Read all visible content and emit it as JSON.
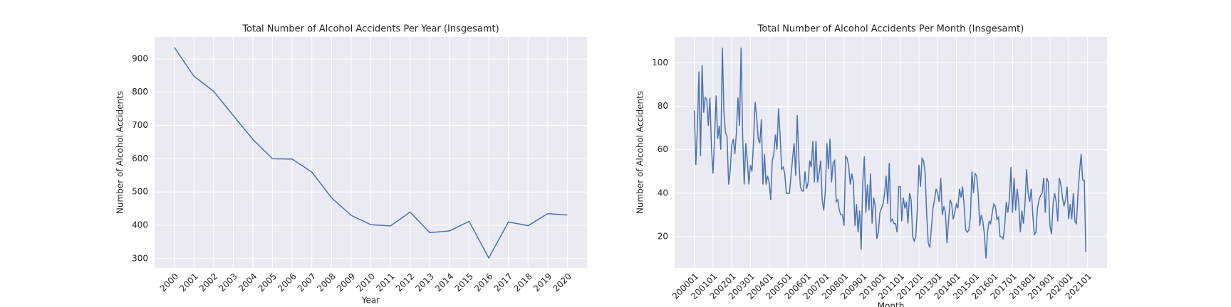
{
  "chart_data": [
    {
      "type": "line",
      "title": "Total Number of Alcohol Accidents Per Year (Insgesamt)",
      "x_label": "Year",
      "y_label": "Number of Alcohol Accidents",
      "x": [
        2000,
        2001,
        2002,
        2003,
        2004,
        2005,
        2006,
        2007,
        2008,
        2009,
        2010,
        2011,
        2012,
        2013,
        2014,
        2015,
        2016,
        2017,
        2018,
        2019,
        2020
      ],
      "series": [
        {
          "name": "Insgesamt",
          "color": "#4c72b0",
          "values": [
            935,
            848,
            803,
            730,
            658,
            600,
            599,
            560,
            483,
            430,
            402,
            398,
            440,
            378,
            383,
            412,
            302,
            410,
            399,
            435,
            431
          ]
        }
      ],
      "xlim": [
        1999,
        2021
      ],
      "xticks": [
        2000,
        2001,
        2002,
        2003,
        2004,
        2005,
        2006,
        2007,
        2008,
        2009,
        2010,
        2011,
        2012,
        2013,
        2014,
        2015,
        2016,
        2017,
        2018,
        2019,
        2020
      ],
      "ylim": [
        272,
        966
      ],
      "yticks": [
        300,
        400,
        500,
        600,
        700,
        800,
        900
      ],
      "grid": true,
      "background": "#eaeaf2"
    },
    {
      "type": "line",
      "title": "Total Number of Alcohol Accidents Per Month (Insgesamt)",
      "x_label": "Month",
      "y_label": "Number of Alcohol Accidents",
      "categories": [
        "200001",
        null,
        null,
        null,
        null,
        null,
        null,
        null,
        null,
        null,
        null,
        null,
        "200101",
        null,
        null,
        null,
        null,
        null,
        null,
        null,
        null,
        null,
        null,
        null,
        "200201",
        null,
        null,
        null,
        null,
        null,
        null,
        null,
        null,
        null,
        null,
        null,
        "200301",
        null,
        null,
        null,
        null,
        null,
        null,
        null,
        null,
        null,
        null,
        null,
        "200401",
        null,
        null,
        null,
        null,
        null,
        null,
        null,
        null,
        null,
        null,
        null,
        "200501",
        null,
        null,
        null,
        null,
        null,
        null,
        null,
        null,
        null,
        null,
        null,
        "200601",
        null,
        null,
        null,
        null,
        null,
        null,
        null,
        null,
        null,
        null,
        null,
        "200701",
        null,
        null,
        null,
        null,
        null,
        null,
        null,
        null,
        null,
        null,
        null,
        "200801",
        null,
        null,
        null,
        null,
        null,
        null,
        null,
        null,
        null,
        null,
        null,
        "200901",
        null,
        null,
        null,
        null,
        null,
        null,
        null,
        null,
        null,
        null,
        null,
        "201001",
        null,
        null,
        null,
        null,
        null,
        null,
        null,
        null,
        null,
        null,
        null,
        "201101",
        null,
        null,
        null,
        null,
        null,
        null,
        null,
        null,
        null,
        null,
        null,
        "201201",
        null,
        null,
        null,
        null,
        null,
        null,
        null,
        null,
        null,
        null,
        null,
        "201301",
        null,
        null,
        null,
        null,
        null,
        null,
        null,
        null,
        null,
        null,
        null,
        "201401",
        null,
        null,
        null,
        null,
        null,
        null,
        null,
        null,
        null,
        null,
        null,
        "201501",
        null,
        null,
        null,
        null,
        null,
        null,
        null,
        null,
        null,
        null,
        null,
        "201601",
        null,
        null,
        null,
        null,
        null,
        null,
        null,
        null,
        null,
        null,
        null,
        "201701",
        null,
        null,
        null,
        null,
        null,
        null,
        null,
        null,
        null,
        null,
        null,
        "201801",
        null,
        null,
        null,
        null,
        null,
        null,
        null,
        null,
        null,
        null,
        null,
        "201901",
        null,
        null,
        null,
        null,
        null,
        null,
        null,
        null,
        null,
        null,
        null,
        "202001",
        null,
        null,
        null,
        null,
        null,
        null,
        null,
        null,
        null,
        null,
        null,
        "202101"
      ],
      "series": [
        {
          "name": "Insgesamt",
          "color": "#4c72b0",
          "values": [
            78,
            53,
            70,
            96,
            57,
            99,
            77,
            84,
            83,
            71,
            84,
            61,
            49,
            65,
            85,
            65,
            71,
            60,
            107,
            77,
            68,
            66,
            44,
            50,
            62,
            65,
            58,
            68,
            84,
            71,
            107,
            67,
            44,
            63,
            55,
            44,
            53,
            50,
            64,
            82,
            75,
            65,
            63,
            74,
            44,
            58,
            44,
            48,
            45,
            37,
            55,
            58,
            67,
            60,
            79,
            67,
            51,
            52,
            49,
            40,
            40,
            40,
            48,
            56,
            63,
            48,
            76,
            56,
            43,
            41,
            41,
            50,
            42,
            45,
            55,
            52,
            64,
            45,
            64,
            45,
            49,
            55,
            37,
            32,
            41,
            63,
            51,
            65,
            45,
            54,
            55,
            36,
            37,
            32,
            30,
            30,
            25,
            57,
            56,
            52,
            44,
            49,
            45,
            25,
            35,
            22,
            32,
            14,
            45,
            57,
            31,
            44,
            32,
            49,
            26,
            38,
            34,
            19,
            22,
            31,
            33,
            35,
            40,
            48,
            35,
            54,
            27,
            28,
            26,
            26,
            22,
            43,
            43,
            27,
            38,
            33,
            36,
            26,
            40,
            37,
            20,
            18,
            20,
            33,
            53,
            43,
            56,
            55,
            49,
            30,
            17,
            15,
            24,
            33,
            37,
            42,
            40,
            36,
            47,
            30,
            34,
            31,
            17,
            27,
            37,
            35,
            28,
            31,
            35,
            33,
            42,
            38,
            43,
            34,
            23,
            22,
            23,
            29,
            50,
            40,
            49,
            48,
            40,
            25,
            30,
            27,
            21,
            10,
            22,
            27,
            26,
            31,
            35,
            34,
            28,
            29,
            20,
            20,
            19,
            25,
            36,
            31,
            37,
            52,
            31,
            47,
            32,
            42,
            35,
            22,
            32,
            26,
            35,
            51,
            40,
            36,
            42,
            30,
            21,
            22,
            33,
            37,
            39,
            40,
            47,
            31,
            47,
            45,
            25,
            21,
            35,
            40,
            36,
            27,
            47,
            44,
            38,
            34,
            37,
            43,
            28,
            35,
            28,
            40,
            27,
            26,
            40,
            50,
            58,
            46,
            46,
            13,
            null
          ]
        }
      ],
      "ylim": [
        5.6,
        111.9
      ],
      "yticks": [
        20,
        40,
        60,
        80,
        100
      ],
      "grid": true,
      "background": "#eaeaf2"
    }
  ]
}
